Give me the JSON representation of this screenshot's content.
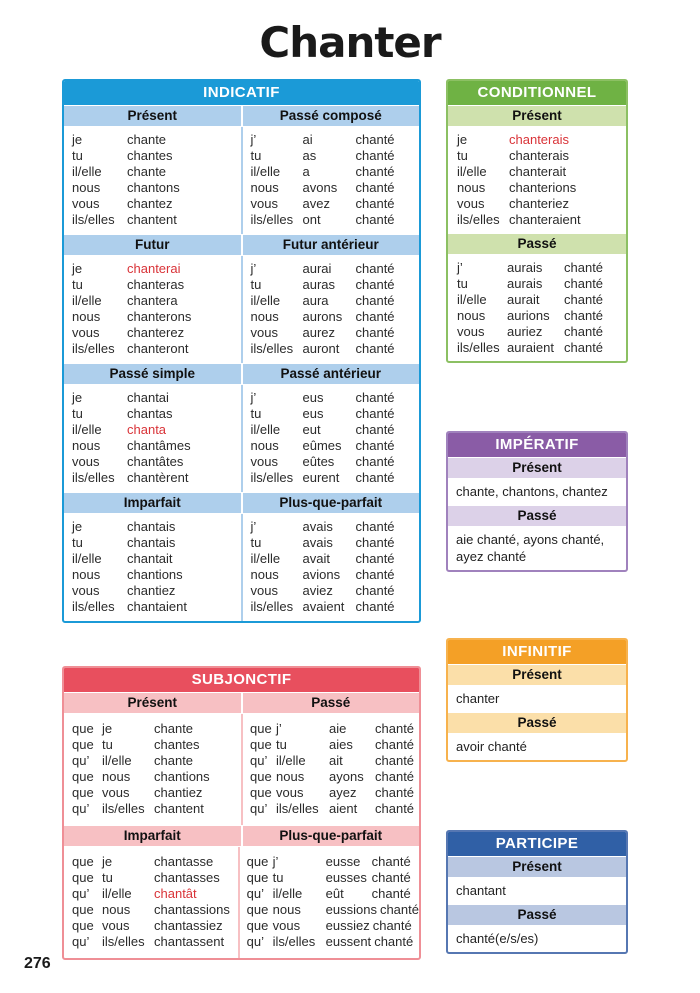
{
  "page": {
    "title": "Chanter",
    "page_number": "276"
  },
  "colors": {
    "highlight_red": "#d93338",
    "indicatif": "#1b9ad7",
    "indicatif_light": "#aecfec",
    "indicatif_border": "#1b9ad7",
    "subjonctif": "#e84f5e",
    "subjonctif_light": "#f7c0c3",
    "subjonctif_border": "#ef8f96",
    "conditionnel": "#6fb244",
    "conditionnel_light": "#cfe1ad",
    "conditionnel_border": "#8cc063",
    "imperatif": "#8a5ca6",
    "imperatif_light": "#dcd1e8",
    "imperatif_border": "#a082bd",
    "infinitif": "#f4a026",
    "infinitif_light": "#fbdfa9",
    "infinitif_border": "#f7b24d",
    "participe": "#3060a6",
    "participe_light": "#b9c7e1",
    "participe_border": "#5677b2"
  },
  "indicatif": {
    "title": "INDICATIF",
    "pairs": [
      {
        "left": {
          "tense": "Présent",
          "type": "simple",
          "rows": [
            {
              "p": "je",
              "v": "chante"
            },
            {
              "p": "tu",
              "v": "chantes"
            },
            {
              "p": "il/elle",
              "v": "chante"
            },
            {
              "p": "nous",
              "v": "chantons"
            },
            {
              "p": "vous",
              "v": "chantez"
            },
            {
              "p": "ils/elles",
              "v": "chantent"
            }
          ]
        },
        "right": {
          "tense": "Passé composé",
          "type": "compound",
          "rows": [
            {
              "p": "j’",
              "a": "ai",
              "v": "chanté"
            },
            {
              "p": "tu",
              "a": "as",
              "v": "chanté"
            },
            {
              "p": "il/elle",
              "a": "a",
              "v": "chanté"
            },
            {
              "p": "nous",
              "a": "avons",
              "v": "chanté"
            },
            {
              "p": "vous",
              "a": "avez",
              "v": "chanté"
            },
            {
              "p": "ils/elles",
              "a": "ont",
              "v": "chanté"
            }
          ]
        }
      },
      {
        "left": {
          "tense": "Futur",
          "type": "simple",
          "rows": [
            {
              "p": "je",
              "v": "chanterai",
              "hl": true
            },
            {
              "p": "tu",
              "v": "chanteras"
            },
            {
              "p": "il/elle",
              "v": "chantera"
            },
            {
              "p": "nous",
              "v": "chanterons"
            },
            {
              "p": "vous",
              "v": "chanterez"
            },
            {
              "p": "ils/elles",
              "v": "chanteront"
            }
          ]
        },
        "right": {
          "tense": "Futur antérieur",
          "type": "compound",
          "rows": [
            {
              "p": "j’",
              "a": "aurai",
              "v": "chanté"
            },
            {
              "p": "tu",
              "a": "auras",
              "v": "chanté"
            },
            {
              "p": "il/elle",
              "a": "aura",
              "v": "chanté"
            },
            {
              "p": "nous",
              "a": "aurons",
              "v": "chanté"
            },
            {
              "p": "vous",
              "a": "aurez",
              "v": "chanté"
            },
            {
              "p": "ils/elles",
              "a": "auront",
              "v": "chanté"
            }
          ]
        }
      },
      {
        "left": {
          "tense": "Passé simple",
          "type": "simple",
          "rows": [
            {
              "p": "je",
              "v": "chantai"
            },
            {
              "p": "tu",
              "v": "chantas"
            },
            {
              "p": "il/elle",
              "v": "chanta",
              "hl": true
            },
            {
              "p": "nous",
              "v": "chantâmes"
            },
            {
              "p": "vous",
              "v": "chantâtes"
            },
            {
              "p": "ils/elles",
              "v": "chantèrent"
            }
          ]
        },
        "right": {
          "tense": "Passé antérieur",
          "type": "compound",
          "rows": [
            {
              "p": "j’",
              "a": "eus",
              "v": "chanté"
            },
            {
              "p": "tu",
              "a": "eus",
              "v": "chanté"
            },
            {
              "p": "il/elle",
              "a": "eut",
              "v": "chanté"
            },
            {
              "p": "nous",
              "a": "eûmes",
              "v": "chanté"
            },
            {
              "p": "vous",
              "a": "eûtes",
              "v": "chanté"
            },
            {
              "p": "ils/elles",
              "a": "eurent",
              "v": "chanté"
            }
          ]
        }
      },
      {
        "left": {
          "tense": "Imparfait",
          "type": "simple",
          "rows": [
            {
              "p": "je",
              "v": "chantais"
            },
            {
              "p": "tu",
              "v": "chantais"
            },
            {
              "p": "il/elle",
              "v": "chantait"
            },
            {
              "p": "nous",
              "v": "chantions"
            },
            {
              "p": "vous",
              "v": "chantiez"
            },
            {
              "p": "ils/elles",
              "v": "chantaient"
            }
          ]
        },
        "right": {
          "tense": "Plus-que-parfait",
          "type": "compound",
          "rows": [
            {
              "p": "j’",
              "a": "avais",
              "v": "chanté"
            },
            {
              "p": "tu",
              "a": "avais",
              "v": "chanté"
            },
            {
              "p": "il/elle",
              "a": "avait",
              "v": "chanté"
            },
            {
              "p": "nous",
              "a": "avions",
              "v": "chanté"
            },
            {
              "p": "vous",
              "a": "aviez",
              "v": "chanté"
            },
            {
              "p": "ils/elles",
              "a": "avaient",
              "v": "chanté"
            }
          ]
        }
      }
    ]
  },
  "subjonctif": {
    "title": "SUBJONCTIF",
    "pairs": [
      {
        "left": {
          "tense": "Présent",
          "type": "simple",
          "rows": [
            {
              "q": "que",
              "p": "je",
              "v": "chante"
            },
            {
              "q": "que",
              "p": "tu",
              "v": "chantes"
            },
            {
              "q": "qu’",
              "p": "il/elle",
              "v": "chante"
            },
            {
              "q": "que",
              "p": "nous",
              "v": "chantions"
            },
            {
              "q": "que",
              "p": "vous",
              "v": "chantiez"
            },
            {
              "q": "qu’",
              "p": "ils/elles",
              "v": "chantent"
            }
          ]
        },
        "right": {
          "tense": "Passé",
          "type": "compound",
          "rows": [
            {
              "q": "que",
              "p": "j’",
              "a": "aie",
              "v": "chanté"
            },
            {
              "q": "que",
              "p": "tu",
              "a": "aies",
              "v": "chanté"
            },
            {
              "q": "qu’",
              "p": "il/elle",
              "a": "ait",
              "v": "chanté"
            },
            {
              "q": "que",
              "p": "nous",
              "a": "ayons",
              "v": "chanté"
            },
            {
              "q": "que",
              "p": "vous",
              "a": "ayez",
              "v": "chanté"
            },
            {
              "q": "qu’",
              "p": "ils/elles",
              "a": "aient",
              "v": "chanté"
            }
          ]
        }
      },
      {
        "left": {
          "tense": "Imparfait",
          "type": "simple",
          "rows": [
            {
              "q": "que",
              "p": "je",
              "v": "chantasse"
            },
            {
              "q": "que",
              "p": "tu",
              "v": "chantasses"
            },
            {
              "q": "qu’",
              "p": "il/elle",
              "v": "chantât",
              "hl": true
            },
            {
              "q": "que",
              "p": "nous",
              "v": "chantassions"
            },
            {
              "q": "que",
              "p": "vous",
              "v": "chantassiez"
            },
            {
              "q": "qu’",
              "p": "ils/elles",
              "v": "chantassent"
            }
          ]
        },
        "right": {
          "tense": "Plus-que-parfait",
          "type": "compound",
          "rows": [
            {
              "q": "que",
              "p": "j’",
              "a": "eusse",
              "v": "chanté"
            },
            {
              "q": "que",
              "p": "tu",
              "a": "eusses",
              "v": "chanté"
            },
            {
              "q": "qu’",
              "p": "il/elle",
              "a": "eût",
              "v": "chanté"
            },
            {
              "q": "que",
              "p": "nous",
              "a": "eussions",
              "v": "chanté"
            },
            {
              "q": "que",
              "p": "vous",
              "a": "eussiez",
              "v": "chanté"
            },
            {
              "q": "qu’",
              "p": "ils/elles",
              "a": "eussent",
              "v": "chanté"
            }
          ]
        }
      }
    ]
  },
  "conditionnel": {
    "title": "CONDITIONNEL",
    "tenses": [
      {
        "tense": "Présent",
        "type": "simple",
        "rows": [
          {
            "p": "je",
            "v": "chanterais",
            "hl": true
          },
          {
            "p": "tu",
            "v": "chanterais"
          },
          {
            "p": "il/elle",
            "v": "chanterait"
          },
          {
            "p": "nous",
            "v": "chanterions"
          },
          {
            "p": "vous",
            "v": "chanteriez"
          },
          {
            "p": "ils/elles",
            "v": "chanteraient"
          }
        ]
      },
      {
        "tense": "Passé",
        "type": "compound",
        "rows": [
          {
            "p": "j’",
            "a": "aurais",
            "v": "chanté"
          },
          {
            "p": "tu",
            "a": "aurais",
            "v": "chanté"
          },
          {
            "p": "il/elle",
            "a": "aurait",
            "v": "chanté"
          },
          {
            "p": "nous",
            "a": "aurions",
            "v": "chanté"
          },
          {
            "p": "vous",
            "a": "auriez",
            "v": "chanté"
          },
          {
            "p": "ils/elles",
            "a": "auraient",
            "v": "chanté"
          }
        ]
      }
    ]
  },
  "imperatif": {
    "title": "IMPÉRATIF",
    "tenses": [
      {
        "tense": "Présent",
        "text": "chante, chantons, chantez"
      },
      {
        "tense": "Passé",
        "text": "aie chanté, ayons chanté, ayez chanté"
      }
    ]
  },
  "infinitif": {
    "title": "INFINITIF",
    "tenses": [
      {
        "tense": "Présent",
        "text": "chanter"
      },
      {
        "tense": "Passé",
        "text": "avoir chanté"
      }
    ]
  },
  "participe": {
    "title": "PARTICIPE",
    "tenses": [
      {
        "tense": "Présent",
        "text": "chantant"
      },
      {
        "tense": "Passé",
        "text": "chanté(e/s/es)"
      }
    ]
  }
}
